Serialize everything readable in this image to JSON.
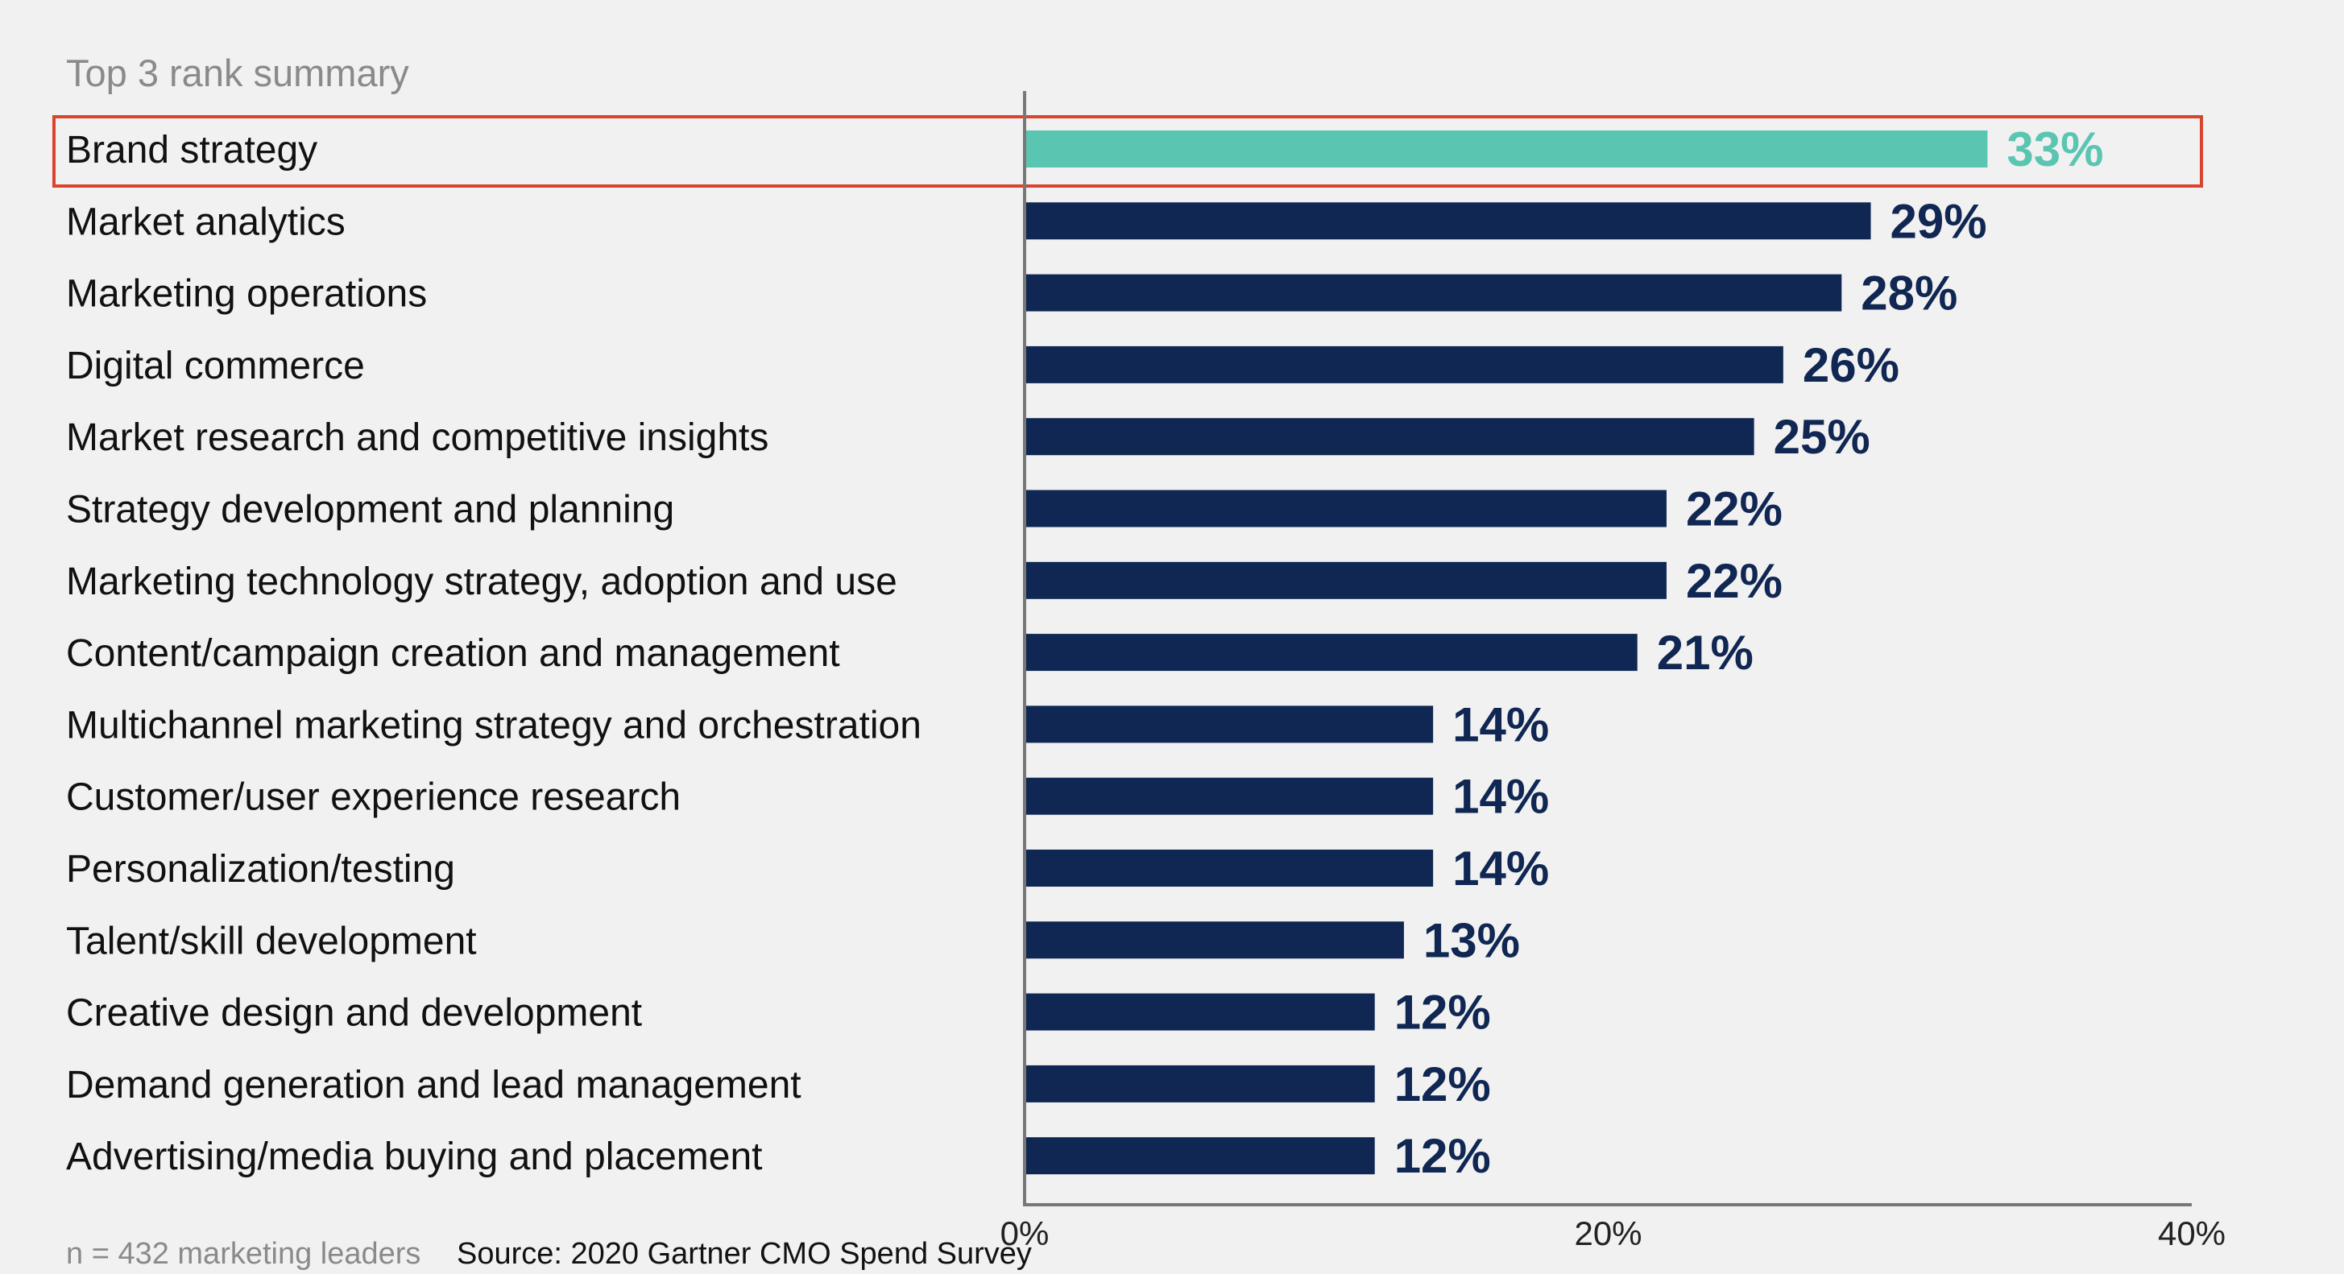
{
  "chart_data": {
    "type": "bar",
    "orientation": "horizontal",
    "subtitle": "Top 3 rank summary",
    "categories": [
      "Brand strategy",
      "Market analytics",
      "Marketing operations",
      "Digital commerce",
      "Market research and competitive insights",
      "Strategy development and planning",
      "Marketing technology strategy, adoption and use",
      "Content/campaign creation and management",
      "Multichannel marketing strategy and orchestration",
      "Customer/user experience research",
      "Personalization/testing",
      "Talent/skill development",
      "Creative design and development",
      "Demand generation and lead management",
      "Advertising/media buying and placement"
    ],
    "values": [
      33,
      29,
      28,
      26,
      25,
      22,
      22,
      21,
      14,
      14,
      14,
      13,
      12,
      12,
      12
    ],
    "value_labels": [
      "33%",
      "29%",
      "28%",
      "26%",
      "25%",
      "22%",
      "22%",
      "21%",
      "14%",
      "14%",
      "14%",
      "13%",
      "12%",
      "12%",
      "12%"
    ],
    "xlim": [
      0,
      40
    ],
    "xticks": [
      0,
      20,
      40
    ],
    "xtick_labels": [
      "0%",
      "20%",
      "40%"
    ],
    "grid": false,
    "highlighted_category": "Brand strategy",
    "colors": {
      "bar": "#0f2752",
      "highlight_bar": "#5ac6b2",
      "highlight_box": "#d9442f",
      "axis": "#777777",
      "background": "#f2f1f2"
    }
  },
  "footnote": {
    "sample": "n = 432 marketing leaders",
    "source": "Source: 2020 Gartner CMO Spend Survey"
  }
}
